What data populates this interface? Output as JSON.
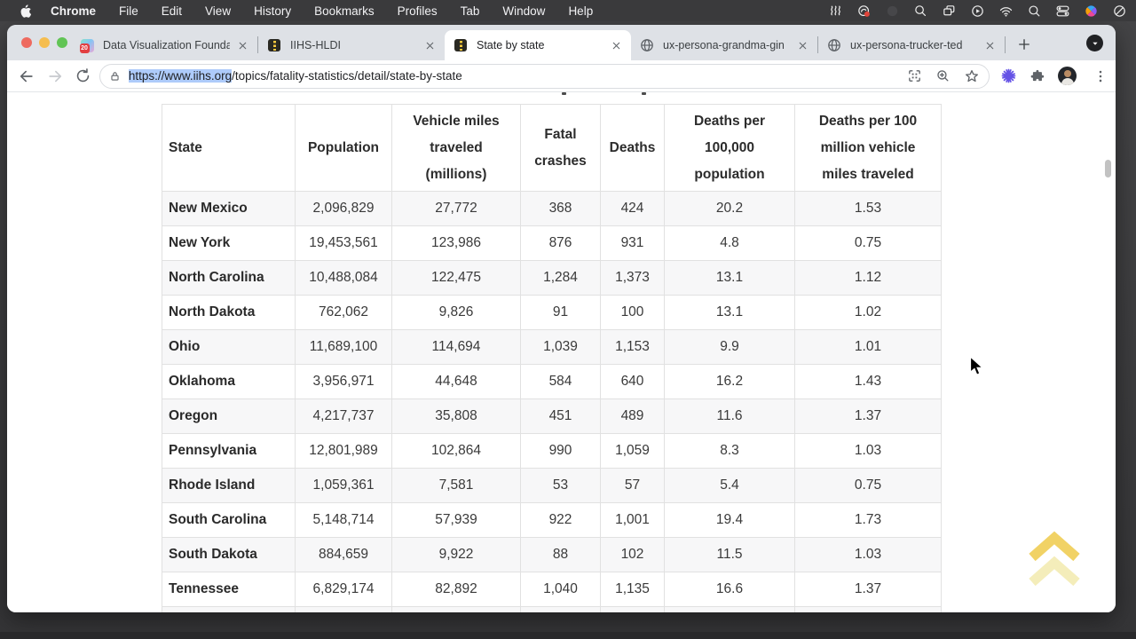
{
  "menubar": {
    "apple_icon": "apple-logo",
    "items": [
      "Chrome",
      "File",
      "Edit",
      "View",
      "History",
      "Bookmarks",
      "Profiles",
      "Tab",
      "Window",
      "Help"
    ],
    "status_icon_names": [
      "waves",
      "screen-share-alert",
      "recording-dim",
      "zoom-tool",
      "stacked-windows",
      "play-circle",
      "wifi",
      "spotlight-search",
      "control-center",
      "launcher-colorful",
      "do-not-disturb"
    ]
  },
  "browser": {
    "traffic_lights": [
      "close",
      "minimize",
      "zoom"
    ],
    "tabs": [
      {
        "title": "Data Visualization Founda",
        "favicon": "calendar-20",
        "active": false
      },
      {
        "title": "IIHS-HLDI",
        "favicon": "iihs-road",
        "active": false
      },
      {
        "title": "State by state",
        "favicon": "iihs-road",
        "active": true
      },
      {
        "title": "ux-persona-grandma-gin",
        "favicon": "globe",
        "active": false
      },
      {
        "title": "ux-persona-trucker-ted",
        "favicon": "globe",
        "active": false
      }
    ],
    "omnibox": {
      "url_selected": "https://www.iihs.org",
      "url_rest": "/topics/fatality-statistics/detail/state-by-state"
    },
    "toolbar_icon_names": [
      "back-arrow",
      "forward-arrow",
      "reload",
      "lock",
      "screenshot-grid",
      "zoom-in",
      "bookmark-star",
      "extension-burst",
      "puzzle-extensions",
      "profile-avatar",
      "three-dot-menu"
    ],
    "tab_bar_icon_names": [
      "new-tab-plus",
      "tab-search-chevron"
    ]
  },
  "page": {
    "table": {
      "headers": [
        "State",
        "Population",
        "Vehicle miles traveled (millions)",
        "Fatal crashes",
        "Deaths",
        "Deaths per 100,000 population",
        "Deaths per 100 million vehicle miles traveled"
      ],
      "rows": [
        [
          "New Mexico",
          "2,096,829",
          "27,772",
          "368",
          "424",
          "20.2",
          "1.53"
        ],
        [
          "New York",
          "19,453,561",
          "123,986",
          "876",
          "931",
          "4.8",
          "0.75"
        ],
        [
          "North Carolina",
          "10,488,084",
          "122,475",
          "1,284",
          "1,373",
          "13.1",
          "1.12"
        ],
        [
          "North Dakota",
          "762,062",
          "9,826",
          "91",
          "100",
          "13.1",
          "1.02"
        ],
        [
          "Ohio",
          "11,689,100",
          "114,694",
          "1,039",
          "1,153",
          "9.9",
          "1.01"
        ],
        [
          "Oklahoma",
          "3,956,971",
          "44,648",
          "584",
          "640",
          "16.2",
          "1.43"
        ],
        [
          "Oregon",
          "4,217,737",
          "35,808",
          "451",
          "489",
          "11.6",
          "1.37"
        ],
        [
          "Pennsylvania",
          "12,801,989",
          "102,864",
          "990",
          "1,059",
          "8.3",
          "1.03"
        ],
        [
          "Rhode Island",
          "1,059,361",
          "7,581",
          "53",
          "57",
          "5.4",
          "0.75"
        ],
        [
          "South Carolina",
          "5,148,714",
          "57,939",
          "922",
          "1,001",
          "19.4",
          "1.73"
        ],
        [
          "South Dakota",
          "884,659",
          "9,922",
          "88",
          "102",
          "11.5",
          "1.03"
        ],
        [
          "Tennessee",
          "6,829,174",
          "82,892",
          "1,040",
          "1,135",
          "16.6",
          "1.37"
        ]
      ]
    },
    "back_to_top_icon": "double-chevron-up"
  },
  "colors": {
    "url_selection": "#aecbfa",
    "alt_row": "#f7f7f8",
    "back_to_top_yellow": "#f0ce58",
    "tab_strip": "#dee1e6",
    "menubar_bg": "#3a3a3c"
  }
}
